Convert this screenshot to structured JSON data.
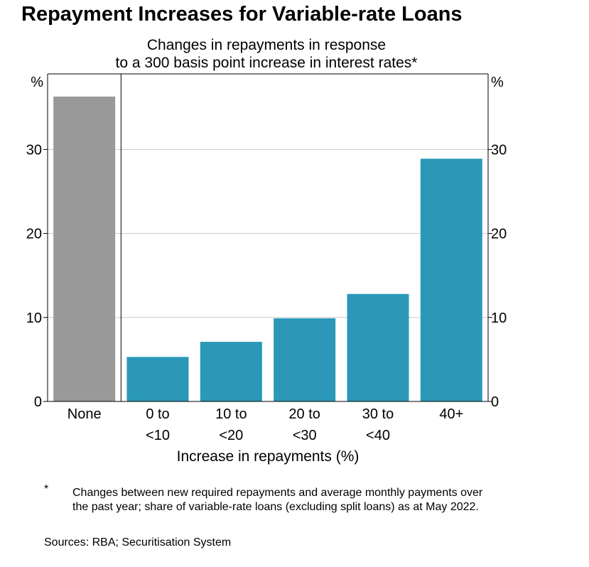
{
  "chart_data": {
    "type": "bar",
    "title": "Repayment Increases for Variable-rate Loans",
    "subtitle_lines": [
      "Changes in repayments in response",
      "to a 300 basis point increase in interest rates*"
    ],
    "categories": [
      [
        "None"
      ],
      [
        "0 to",
        "<10"
      ],
      [
        "10 to",
        "<20"
      ],
      [
        "20 to",
        "<30"
      ],
      [
        "30 to",
        "<40"
      ],
      [
        "40+"
      ]
    ],
    "values": [
      36.3,
      5.3,
      7.1,
      9.9,
      12.8,
      28.9
    ],
    "bar_colors": [
      "#999999",
      "#2b98b8",
      "#2b98b8",
      "#2b98b8",
      "#2b98b8",
      "#2b98b8"
    ],
    "xlabel": "Increase in repayments (%)",
    "y_unit_left": "%",
    "y_unit_right": "%",
    "ylim": [
      0,
      39
    ],
    "yticks": [
      0,
      10,
      20,
      30
    ],
    "grid": true
  },
  "footnote": {
    "marker": "*",
    "text": "Changes between new required repayments and average monthly payments over the past year; share of variable-rate loans (excluding split loans) as at May 2022."
  },
  "sources": "Sources: RBA; Securitisation System"
}
